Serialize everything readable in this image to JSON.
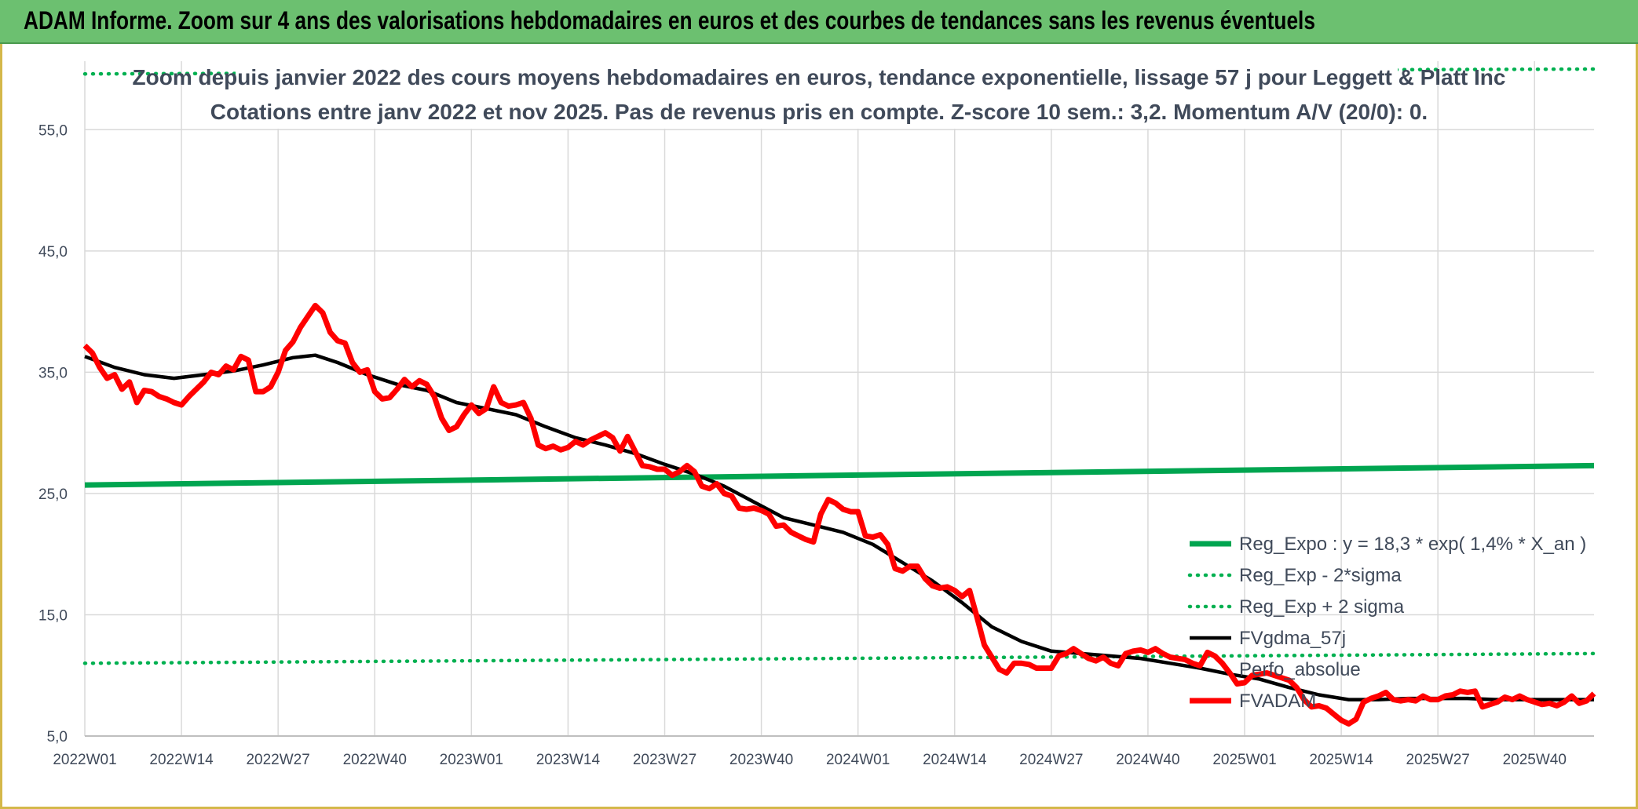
{
  "banner": {
    "title": "ADAM Informe. Zoom sur 4 ans des valorisations hebdomadaires en euros et des courbes de tendances sans les revenus éventuels"
  },
  "chart_data": {
    "type": "line",
    "title": "",
    "subtitle_lines": [
      "Zoom depuis janvier 2022 des cours moyens hebdomadaires en euros, tendance exponentielle, lissage 57 j pour Leggett & Platt Inc",
      "Cotations entre janv 2022 et nov 2025. Pas de revenus pris en compte. Z-score 10 sem.: 3,2. Momentum A/V (20/0): 0."
    ],
    "xlabel": "",
    "ylabel": "",
    "ylim": [
      5,
      60
    ],
    "y_ticks": [
      "5,0",
      "15,0",
      "25,0",
      "35,0",
      "45,0",
      "55,0"
    ],
    "y_tick_values": [
      5,
      15,
      25,
      35,
      45,
      55
    ],
    "x_tick_labels": [
      "2022W01",
      "2022W14",
      "2022W27",
      "2022W40",
      "2023W01",
      "2023W14",
      "2023W27",
      "2023W40",
      "2024W01",
      "2024W14",
      "2024W27",
      "2024W40",
      "2025W01",
      "2025W14",
      "2025W27",
      "2025W40"
    ],
    "x_tick_weeks": [
      0,
      13,
      26,
      39,
      52,
      65,
      78,
      91,
      104,
      117,
      130,
      143,
      156,
      169,
      182,
      195
    ],
    "week_count": 204,
    "grid": true,
    "legend_position": "right",
    "colors": {
      "reg_expo": "#00a550",
      "sigma": "#00b050",
      "smooth": "#000000",
      "price": "#ff0000",
      "grid": "#d9d9d9",
      "axis_text": "#404a5a"
    },
    "series": [
      {
        "name": "Reg_Expo : y = 18,3 * exp( 1,4% *  X_an )",
        "style": "solid-thick",
        "color": "#00a550",
        "points": [
          [
            0,
            25.7
          ],
          [
            203,
            27.3
          ]
        ]
      },
      {
        "name": "Reg_Exp - 2*sigma",
        "style": "dotted",
        "color": "#00b050",
        "points": [
          [
            0,
            11.0
          ],
          [
            203,
            11.8
          ]
        ]
      },
      {
        "name": "Reg_Exp + 2 sigma",
        "style": "dotted",
        "color": "#00b050",
        "points": [
          [
            0,
            59.6
          ],
          [
            203,
            60.0
          ]
        ]
      },
      {
        "name": "FVgdma_57j",
        "style": "solid",
        "color": "#000000",
        "points": [
          [
            0,
            36.3
          ],
          [
            4,
            35.4
          ],
          [
            8,
            34.8
          ],
          [
            12,
            34.5
          ],
          [
            16,
            34.8
          ],
          [
            20,
            35.1
          ],
          [
            24,
            35.6
          ],
          [
            28,
            36.2
          ],
          [
            31,
            36.4
          ],
          [
            34,
            35.8
          ],
          [
            38,
            34.8
          ],
          [
            42,
            34.0
          ],
          [
            46,
            33.5
          ],
          [
            50,
            32.5
          ],
          [
            54,
            32.0
          ],
          [
            58,
            31.5
          ],
          [
            62,
            30.5
          ],
          [
            66,
            29.6
          ],
          [
            70,
            29.0
          ],
          [
            74,
            28.3
          ],
          [
            78,
            27.4
          ],
          [
            82,
            26.6
          ],
          [
            86,
            25.6
          ],
          [
            90,
            24.3
          ],
          [
            94,
            23.0
          ],
          [
            98,
            22.4
          ],
          [
            102,
            21.8
          ],
          [
            106,
            20.8
          ],
          [
            110,
            19.3
          ],
          [
            114,
            17.8
          ],
          [
            118,
            16.0
          ],
          [
            122,
            14.0
          ],
          [
            126,
            12.8
          ],
          [
            130,
            12.0
          ],
          [
            134,
            11.8
          ],
          [
            138,
            11.6
          ],
          [
            142,
            11.4
          ],
          [
            146,
            11.0
          ],
          [
            150,
            10.6
          ],
          [
            154,
            10.1
          ],
          [
            158,
            9.7
          ],
          [
            162,
            9.0
          ],
          [
            166,
            8.4
          ],
          [
            170,
            8.0
          ],
          [
            174,
            8.0
          ],
          [
            178,
            8.1
          ],
          [
            182,
            8.1
          ],
          [
            186,
            8.1
          ],
          [
            190,
            8.0
          ],
          [
            194,
            8.0
          ],
          [
            198,
            8.0
          ],
          [
            203,
            8.0
          ]
        ]
      },
      {
        "name": "Perfo_absolue",
        "style": "hidden",
        "color": "#404a5a",
        "points": []
      },
      {
        "name": "FVADAM",
        "style": "solid-thick",
        "color": "#ff0000",
        "points": [
          [
            0,
            37.2
          ],
          [
            1,
            36.6
          ],
          [
            2,
            35.4
          ],
          [
            3,
            34.5
          ],
          [
            4,
            34.8
          ],
          [
            5,
            33.6
          ],
          [
            6,
            34.2
          ],
          [
            7,
            32.5
          ],
          [
            8,
            33.5
          ],
          [
            9,
            33.4
          ],
          [
            10,
            33.0
          ],
          [
            11,
            32.8
          ],
          [
            12,
            32.5
          ],
          [
            13,
            32.3
          ],
          [
            14,
            33.0
          ],
          [
            15,
            33.6
          ],
          [
            16,
            34.2
          ],
          [
            17,
            35.0
          ],
          [
            18,
            34.8
          ],
          [
            19,
            35.5
          ],
          [
            20,
            35.2
          ],
          [
            21,
            36.3
          ],
          [
            22,
            36.0
          ],
          [
            23,
            33.4
          ],
          [
            24,
            33.4
          ],
          [
            25,
            33.8
          ],
          [
            26,
            35.0
          ],
          [
            27,
            36.8
          ],
          [
            28,
            37.5
          ],
          [
            29,
            38.7
          ],
          [
            30,
            39.6
          ],
          [
            31,
            40.5
          ],
          [
            32,
            39.9
          ],
          [
            33,
            38.3
          ],
          [
            34,
            37.6
          ],
          [
            35,
            37.4
          ],
          [
            36,
            35.8
          ],
          [
            37,
            35.0
          ],
          [
            38,
            35.2
          ],
          [
            39,
            33.4
          ],
          [
            40,
            32.8
          ],
          [
            41,
            32.9
          ],
          [
            42,
            33.6
          ],
          [
            43,
            34.4
          ],
          [
            44,
            33.8
          ],
          [
            45,
            34.3
          ],
          [
            46,
            34.0
          ],
          [
            47,
            33.0
          ],
          [
            48,
            31.2
          ],
          [
            49,
            30.2
          ],
          [
            50,
            30.5
          ],
          [
            51,
            31.5
          ],
          [
            52,
            32.3
          ],
          [
            53,
            31.6
          ],
          [
            54,
            32.0
          ],
          [
            55,
            33.8
          ],
          [
            56,
            32.5
          ],
          [
            57,
            32.2
          ],
          [
            58,
            32.3
          ],
          [
            59,
            32.5
          ],
          [
            60,
            31.2
          ],
          [
            61,
            29.0
          ],
          [
            62,
            28.7
          ],
          [
            63,
            28.9
          ],
          [
            64,
            28.6
          ],
          [
            65,
            28.8
          ],
          [
            66,
            29.3
          ],
          [
            67,
            29.0
          ],
          [
            68,
            29.4
          ],
          [
            69,
            29.7
          ],
          [
            70,
            30.0
          ],
          [
            71,
            29.6
          ],
          [
            72,
            28.5
          ],
          [
            73,
            29.7
          ],
          [
            74,
            28.5
          ],
          [
            75,
            27.3
          ],
          [
            76,
            27.2
          ],
          [
            77,
            27.0
          ],
          [
            78,
            27.0
          ],
          [
            79,
            26.5
          ],
          [
            80,
            26.8
          ],
          [
            81,
            27.3
          ],
          [
            82,
            26.8
          ],
          [
            83,
            25.6
          ],
          [
            84,
            25.4
          ],
          [
            85,
            25.8
          ],
          [
            86,
            25.0
          ],
          [
            87,
            24.8
          ],
          [
            88,
            23.8
          ],
          [
            89,
            23.7
          ],
          [
            90,
            23.8
          ],
          [
            91,
            23.6
          ],
          [
            92,
            23.3
          ],
          [
            93,
            22.3
          ],
          [
            94,
            22.4
          ],
          [
            95,
            21.8
          ],
          [
            96,
            21.5
          ],
          [
            97,
            21.2
          ],
          [
            98,
            21.0
          ],
          [
            99,
            23.3
          ],
          [
            100,
            24.5
          ],
          [
            101,
            24.2
          ],
          [
            102,
            23.7
          ],
          [
            103,
            23.5
          ],
          [
            104,
            23.5
          ],
          [
            105,
            21.5
          ],
          [
            106,
            21.4
          ],
          [
            107,
            21.6
          ],
          [
            108,
            20.8
          ],
          [
            109,
            18.8
          ],
          [
            110,
            18.6
          ],
          [
            111,
            19.0
          ],
          [
            112,
            19.0
          ],
          [
            113,
            18.0
          ],
          [
            114,
            17.4
          ],
          [
            115,
            17.2
          ],
          [
            116,
            17.3
          ],
          [
            117,
            17.0
          ],
          [
            118,
            16.5
          ],
          [
            119,
            17.0
          ],
          [
            120,
            14.8
          ],
          [
            121,
            12.5
          ],
          [
            122,
            11.5
          ],
          [
            123,
            10.5
          ],
          [
            124,
            10.2
          ],
          [
            125,
            11.0
          ],
          [
            126,
            11.0
          ],
          [
            127,
            10.9
          ],
          [
            128,
            10.6
          ],
          [
            129,
            10.6
          ],
          [
            130,
            10.6
          ],
          [
            131,
            11.6
          ],
          [
            132,
            11.8
          ],
          [
            133,
            12.2
          ],
          [
            134,
            11.8
          ],
          [
            135,
            11.4
          ],
          [
            136,
            11.2
          ],
          [
            137,
            11.5
          ],
          [
            138,
            11.0
          ],
          [
            139,
            10.8
          ],
          [
            140,
            11.8
          ],
          [
            141,
            12.0
          ],
          [
            142,
            12.1
          ],
          [
            143,
            11.9
          ],
          [
            144,
            12.2
          ],
          [
            145,
            11.8
          ],
          [
            146,
            11.5
          ],
          [
            147,
            11.4
          ],
          [
            148,
            11.3
          ],
          [
            149,
            11.0
          ],
          [
            150,
            10.8
          ],
          [
            151,
            11.9
          ],
          [
            152,
            11.6
          ],
          [
            153,
            11.0
          ],
          [
            154,
            10.2
          ],
          [
            155,
            9.3
          ],
          [
            156,
            9.4
          ],
          [
            157,
            10.0
          ],
          [
            158,
            10.1
          ],
          [
            159,
            10.2
          ],
          [
            160,
            10.0
          ],
          [
            161,
            9.8
          ],
          [
            162,
            9.6
          ],
          [
            163,
            9.0
          ],
          [
            164,
            8.0
          ],
          [
            165,
            7.4
          ],
          [
            166,
            7.5
          ],
          [
            167,
            7.3
          ],
          [
            168,
            6.8
          ],
          [
            169,
            6.3
          ],
          [
            170,
            6.0
          ],
          [
            171,
            6.4
          ],
          [
            172,
            7.8
          ],
          [
            173,
            8.1
          ],
          [
            174,
            8.3
          ],
          [
            175,
            8.6
          ],
          [
            176,
            8.0
          ],
          [
            177,
            7.9
          ],
          [
            178,
            8.0
          ],
          [
            179,
            7.9
          ],
          [
            180,
            8.3
          ],
          [
            181,
            8.0
          ],
          [
            182,
            8.0
          ],
          [
            183,
            8.3
          ],
          [
            184,
            8.4
          ],
          [
            185,
            8.7
          ],
          [
            186,
            8.6
          ],
          [
            187,
            8.7
          ],
          [
            188,
            7.4
          ],
          [
            189,
            7.6
          ],
          [
            190,
            7.8
          ],
          [
            191,
            8.2
          ],
          [
            192,
            8.0
          ],
          [
            193,
            8.3
          ],
          [
            194,
            8.0
          ],
          [
            195,
            7.8
          ],
          [
            196,
            7.6
          ],
          [
            197,
            7.7
          ],
          [
            198,
            7.5
          ],
          [
            199,
            7.8
          ],
          [
            200,
            8.3
          ],
          [
            201,
            7.7
          ],
          [
            202,
            7.9
          ],
          [
            203,
            8.5
          ]
        ]
      }
    ]
  }
}
